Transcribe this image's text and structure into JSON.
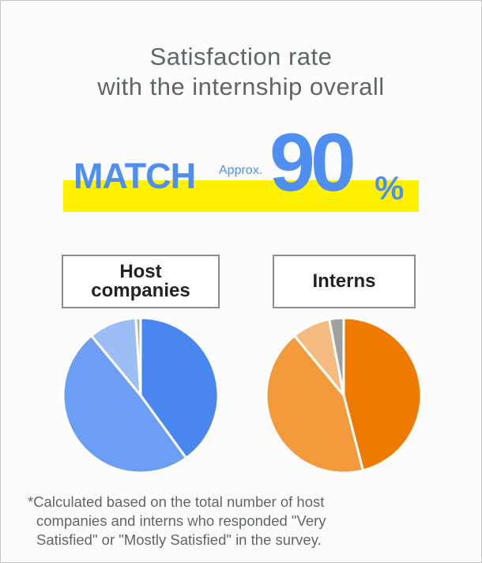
{
  "title": {
    "line1": "Satisfaction rate",
    "line2": "with the internship overall"
  },
  "headline": {
    "match_label": "MATCH",
    "approx_label": "Approx.",
    "value": "90",
    "unit": "%"
  },
  "colors": {
    "highlight": "#fff200",
    "accent_blue": "#4f8ff2",
    "box_border": "#8c8c8c",
    "text_gray": "#5f6668"
  },
  "chart_data": [
    {
      "type": "pie",
      "title": "Host companies",
      "title_lines": [
        "Host",
        "companies"
      ],
      "slices": [
        {
          "value": 40,
          "color": "#4a86f0"
        },
        {
          "value": 49,
          "color": "#6d9ef5"
        },
        {
          "value": 10,
          "color": "#9dbdf6"
        },
        {
          "value": 1,
          "color": "#b0b0b0"
        }
      ]
    },
    {
      "type": "pie",
      "title": "Interns",
      "title_lines": [
        "Interns"
      ],
      "slices": [
        {
          "value": 46,
          "color": "#ef7a00"
        },
        {
          "value": 43,
          "color": "#f39a3d"
        },
        {
          "value": 8,
          "color": "#f5bb80"
        },
        {
          "value": 3,
          "color": "#a0a0a0"
        }
      ]
    }
  ],
  "footnote": {
    "line1": "*Calculated based on the total number of host",
    "line2": "companies and interns who responded \"Very",
    "line3": "Satisfied\" or \"Mostly Satisfied\" in the survey."
  }
}
